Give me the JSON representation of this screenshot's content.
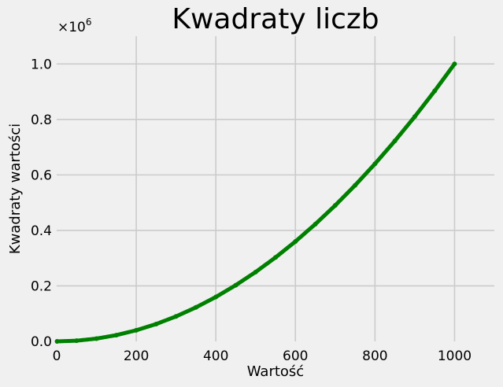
{
  "chart_data": {
    "type": "scatter",
    "title": "Kwadraty liczb",
    "xlabel": "Wartość",
    "ylabel": "Kwadraty wartości",
    "xlim": [
      0,
      1100
    ],
    "ylim": [
      0,
      1.1
    ],
    "x_ticks": [
      "0",
      "200",
      "400",
      "600",
      "800",
      "1000"
    ],
    "x_tick_values": [
      0,
      200,
      400,
      600,
      800,
      1000
    ],
    "y_ticks": [
      "0.0",
      "0.2",
      "0.4",
      "0.6",
      "0.8",
      "1.0"
    ],
    "y_tick_values": [
      0,
      0.2,
      0.4,
      0.6,
      0.8,
      1.0
    ],
    "y_offset_text": "×10",
    "y_offset_exp": "6",
    "grid": true,
    "series": [
      {
        "color": "#008000",
        "x": [
          1,
          50,
          100,
          150,
          200,
          250,
          300,
          350,
          400,
          450,
          500,
          550,
          600,
          650,
          700,
          750,
          800,
          850,
          900,
          950,
          1000
        ],
        "y": [
          1e-06,
          0.0025,
          0.01,
          0.0225,
          0.04,
          0.0625,
          0.09,
          0.1225,
          0.16,
          0.2025,
          0.25,
          0.3025,
          0.36,
          0.4225,
          0.49,
          0.5625,
          0.64,
          0.7225,
          0.81,
          0.9025,
          1.0
        ]
      }
    ]
  }
}
